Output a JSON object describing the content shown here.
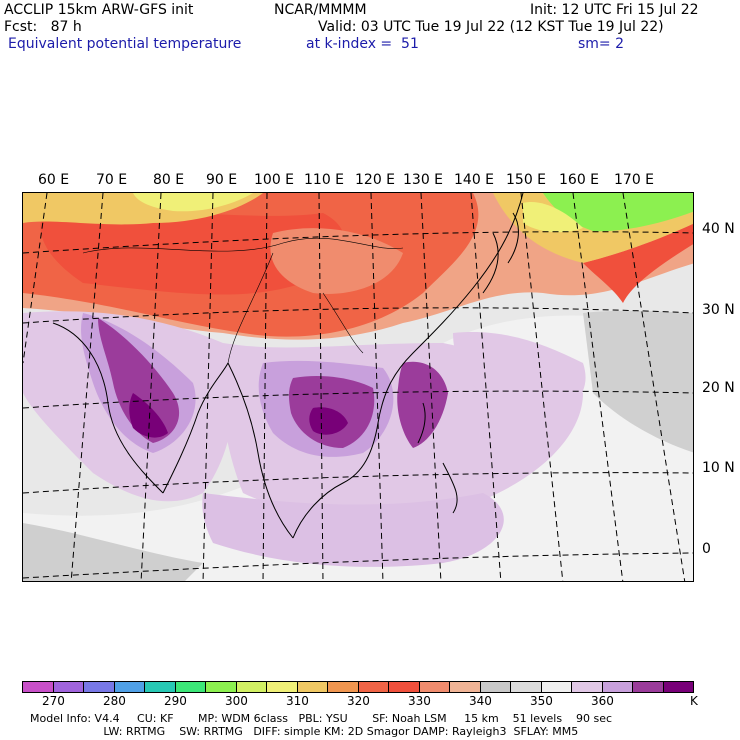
{
  "header": {
    "title": "ACCLIP 15km ARW-GFS init",
    "org": "NCAR/MMMM",
    "init": "Init: 12 UTC Fri 15 Jul 22",
    "fcst": "Fcst:   87 h",
    "valid": "Valid: 03 UTC Tue 19 Jul 22 (12 KST Tue 19 Jul 22)",
    "field": "Equivalent potential temperature",
    "level": "at k-index =  51",
    "smooth": "sm= 2"
  },
  "map": {
    "lon_labels": [
      "60 E",
      "70 E",
      "80 E",
      "90 E",
      "100 E",
      "110 E",
      "120 E",
      "130 E",
      "140 E",
      "150 E",
      "160 E",
      "170 E"
    ],
    "lat_labels": [
      "40 N",
      "30 N",
      "20 N",
      "10 N",
      "0"
    ]
  },
  "colorbar": {
    "unit": "K",
    "ticks": [
      "270",
      "280",
      "290",
      "300",
      "310",
      "320",
      "330",
      "340",
      "350",
      "360"
    ],
    "colors": [
      "#c850c8",
      "#a064dc",
      "#7878e6",
      "#50a0e6",
      "#28c8b4",
      "#3ce678",
      "#8cf050",
      "#d2f064",
      "#f0f078",
      "#f0c864",
      "#f09650",
      "#f06446",
      "#f0503c",
      "#f08c6e",
      "#f0b496",
      "#c8c8c8",
      "#dcdcdc",
      "#f0f0f0",
      "#e1c8e6",
      "#c8a0dc",
      "#9b3c9b",
      "#780078"
    ]
  },
  "footer": {
    "line1": "Model Info: V4.4     CU: KF       MP: WDM 6class   PBL: YSU       SF: Noah LSM     15 km    51 levels    90 sec",
    "line2": "                     LW: RRTMG    SW: RRTMG   DIFF: simple KM: 2D Smagor DAMP: Rayleigh3  SFLAY: MM5"
  }
}
